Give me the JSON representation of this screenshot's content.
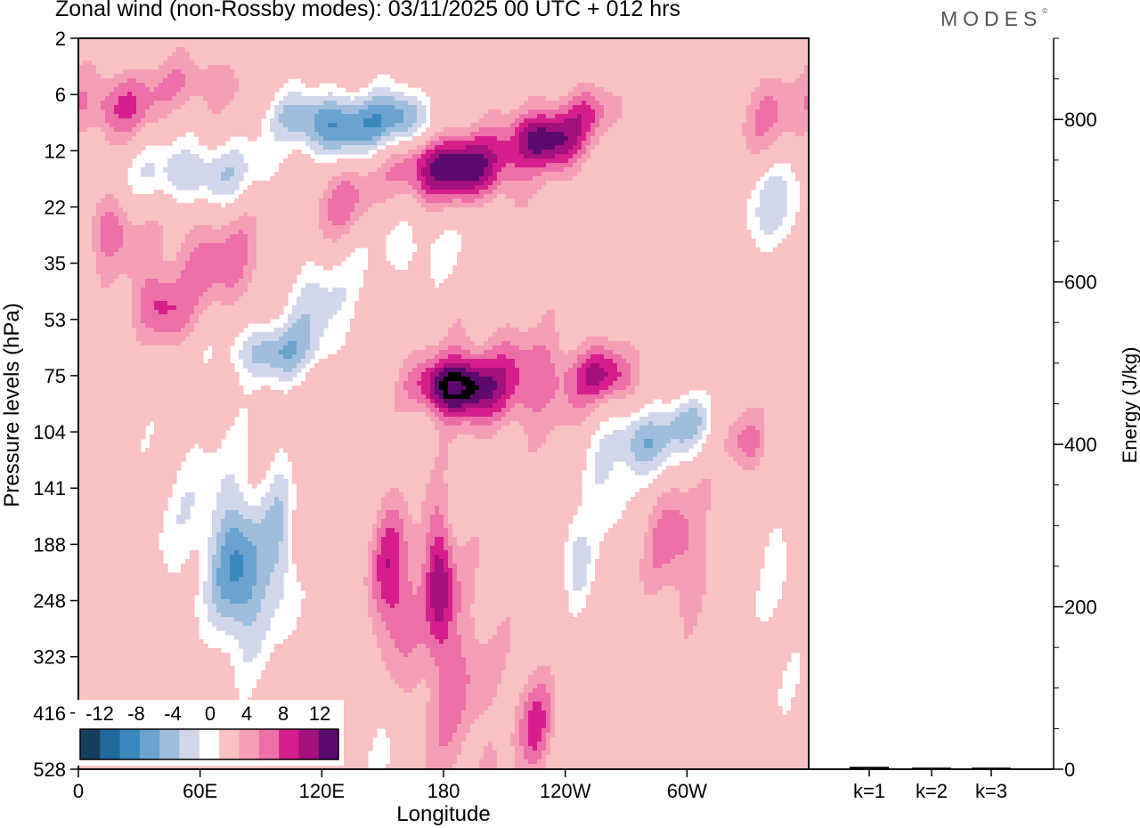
{
  "header": {
    "title": "Zonal wind (non-Rossby modes):  03/11/2025  00 UTC  + 012 hrs",
    "logo": "MODES",
    "logo_mark": "©"
  },
  "chart_data": {
    "type": "heatmap",
    "title": "Zonal wind (non-Rossby modes):  03/11/2025  00 UTC  + 012 hrs",
    "xlabel": "Longitude",
    "ylabel": "Pressure levels (hPa)",
    "x_ticks": [
      {
        "lon": 0,
        "label": "0"
      },
      {
        "lon": 60,
        "label": "60E"
      },
      {
        "lon": 120,
        "label": "120E"
      },
      {
        "lon": 180,
        "label": "180"
      },
      {
        "lon": 240,
        "label": "120W"
      },
      {
        "lon": 300,
        "label": "60W"
      }
    ],
    "xlim": [
      0,
      360
    ],
    "y_levels": [
      "2",
      "6",
      "12",
      "22",
      "35",
      "53",
      "75",
      "104",
      "141",
      "188",
      "248",
      "323",
      "416",
      "528"
    ],
    "colorbar": {
      "ticks": [
        "-12",
        "-8",
        "-4",
        "0",
        "4",
        "8",
        "12"
      ],
      "bins": [
        -14,
        -12,
        -10,
        -8,
        -6,
        -4,
        -2,
        2,
        4,
        6,
        8,
        10,
        12,
        14
      ],
      "colors": [
        "#163e5e",
        "#1f6a9a",
        "#3a87bd",
        "#6aa3cf",
        "#9fbddc",
        "#d2d6ea",
        "#ffffff",
        "#f8c1c3",
        "#f59fb6",
        "#ec6fa8",
        "#d61f8c",
        "#a4107d",
        "#5c0a6e"
      ]
    },
    "features": [
      {
        "lon": 15,
        "lev": 3.4,
        "sx": 14,
        "sy": 0.7,
        "amp": 5.5
      },
      {
        "lon": 60,
        "lev": 0.8,
        "sx": 25,
        "sy": 0.5,
        "amp": 4
      },
      {
        "lon": 20,
        "lev": 1.2,
        "sx": 20,
        "sy": 0.6,
        "amp": 6
      },
      {
        "lon": 110,
        "lev": 1.4,
        "sx": 18,
        "sy": 0.5,
        "amp": -5
      },
      {
        "lon": 135,
        "lev": 1.6,
        "sx": 25,
        "sy": 0.6,
        "amp": -9
      },
      {
        "lon": 160,
        "lev": 1.4,
        "sx": 14,
        "sy": 0.5,
        "amp": -7
      },
      {
        "lon": 60,
        "lev": 2.4,
        "sx": 35,
        "sy": 0.6,
        "amp": -6
      },
      {
        "lon": 185,
        "lev": 2.3,
        "sx": 30,
        "sy": 0.6,
        "amp": 12
      },
      {
        "lon": 230,
        "lev": 1.8,
        "sx": 18,
        "sy": 0.5,
        "amp": 11
      },
      {
        "lon": 250,
        "lev": 1.3,
        "sx": 16,
        "sy": 0.5,
        "amp": 5
      },
      {
        "lon": 130,
        "lev": 3.0,
        "sx": 18,
        "sy": 0.8,
        "amp": 5
      },
      {
        "lon": 70,
        "lev": 4.0,
        "sx": 30,
        "sy": 0.9,
        "amp": 5
      },
      {
        "lon": 40,
        "lev": 4.8,
        "sx": 14,
        "sy": 0.6,
        "amp": 6
      },
      {
        "lon": 115,
        "lev": 4.7,
        "sx": 22,
        "sy": 0.9,
        "amp": -5
      },
      {
        "lon": 95,
        "lev": 5.6,
        "sx": 22,
        "sy": 0.5,
        "amp": -7
      },
      {
        "lon": 160,
        "lev": 3.7,
        "sx": 35,
        "sy": 0.7,
        "amp": -3
      },
      {
        "lon": 345,
        "lev": 3.0,
        "sx": 18,
        "sy": 0.9,
        "amp": -5
      },
      {
        "lon": 340,
        "lev": 1.4,
        "sx": 20,
        "sy": 0.8,
        "amp": 4
      },
      {
        "lon": 185,
        "lev": 6.2,
        "sx": 18,
        "sy": 0.5,
        "amp": 12
      },
      {
        "lon": 215,
        "lev": 6.1,
        "sx": 35,
        "sy": 0.9,
        "amp": 6
      },
      {
        "lon": 260,
        "lev": 6.0,
        "sx": 16,
        "sy": 0.5,
        "amp": 7
      },
      {
        "lon": 280,
        "lev": 7.2,
        "sx": 16,
        "sy": 0.6,
        "amp": -8
      },
      {
        "lon": 300,
        "lev": 6.8,
        "sx": 12,
        "sy": 0.5,
        "amp": -6
      },
      {
        "lon": 330,
        "lev": 7.2,
        "sx": 10,
        "sy": 0.6,
        "amp": 5
      },
      {
        "lon": 80,
        "lev": 9.6,
        "sx": 14,
        "sy": 1.4,
        "amp": -9
      },
      {
        "lon": 100,
        "lev": 9.0,
        "sx": 8,
        "sy": 1.5,
        "amp": -5
      },
      {
        "lon": 60,
        "lev": 8.5,
        "sx": 30,
        "sy": 1.8,
        "amp": -3
      },
      {
        "lon": 155,
        "lev": 9.6,
        "sx": 10,
        "sy": 1.3,
        "amp": 8
      },
      {
        "lon": 178,
        "lev": 9.6,
        "sx": 7,
        "sy": 1.3,
        "amp": 8
      },
      {
        "lon": 185,
        "lev": 11.5,
        "sx": 22,
        "sy": 2.2,
        "amp": 4
      },
      {
        "lon": 225,
        "lev": 12.2,
        "sx": 10,
        "sy": 1.0,
        "amp": 6
      },
      {
        "lon": 295,
        "lev": 9.0,
        "sx": 16,
        "sy": 1.2,
        "amp": 5
      },
      {
        "lon": 245,
        "lev": 9.2,
        "sx": 8,
        "sy": 0.8,
        "amp": -5
      },
      {
        "lon": 260,
        "lev": 8.0,
        "sx": 12,
        "sy": 1.0,
        "amp": -4
      },
      {
        "lon": 150,
        "lev": 12.8,
        "sx": 6,
        "sy": 0.6,
        "amp": -3
      },
      {
        "lon": 345,
        "lev": 10.0,
        "sx": 10,
        "sy": 2.5,
        "amp": -2.5
      }
    ],
    "energy_axis": {
      "label": "Energy (J/kg)",
      "ylim": [
        0,
        900
      ],
      "ticks": [
        0,
        200,
        400,
        600,
        800
      ],
      "minor_step": 50
    },
    "energy_bars": [
      {
        "label": "k=1",
        "value": 3
      },
      {
        "label": "k=2",
        "value": 2
      },
      {
        "label": "k=3",
        "value": 2
      }
    ]
  }
}
